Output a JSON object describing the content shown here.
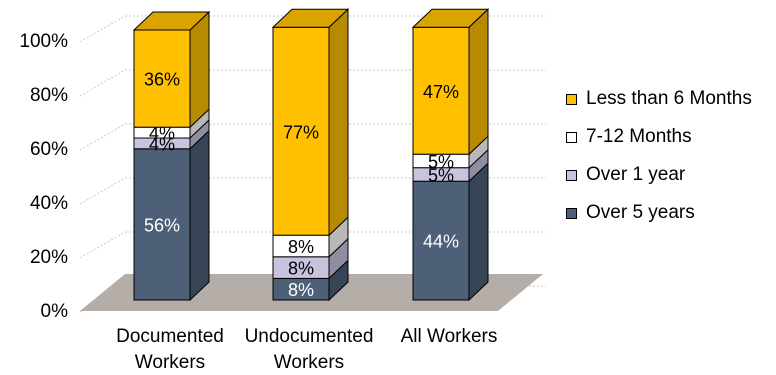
{
  "chart_data": {
    "type": "bar",
    "stacked": true,
    "three_d": true,
    "title": "",
    "xlabel": "",
    "ylabel": "",
    "ylim": [
      0,
      100
    ],
    "yticks": [
      "0%",
      "20%",
      "40%",
      "60%",
      "80%",
      "100%"
    ],
    "categories": [
      [
        "Documented",
        "Workers"
      ],
      [
        "Undocumented",
        "Workers"
      ],
      [
        "All Workers"
      ]
    ],
    "series": [
      {
        "name": "Over 5 years",
        "color": "#4d6078",
        "label_color": "#ffffff",
        "values": [
          56,
          8,
          44
        ],
        "labels": [
          "56%",
          "8%",
          "44%"
        ]
      },
      {
        "name": "Over 1 year",
        "color": "#c8c4e0",
        "label_color": "#000000",
        "values": [
          4,
          8,
          5
        ],
        "labels": [
          "4%",
          "8%",
          "5%"
        ]
      },
      {
        "name": "7-12 Months",
        "color": "#ffffff",
        "label_color": "#000000",
        "values": [
          4,
          8,
          5
        ],
        "labels": [
          "4%",
          "8%",
          "5%"
        ]
      },
      {
        "name": "Less than 6 Months",
        "color": "#ffc000",
        "label_color": "#000000",
        "values": [
          36,
          77,
          47
        ],
        "labels": [
          "36%",
          "77%",
          "47%"
        ]
      }
    ],
    "legend_position": "right",
    "grid": true
  }
}
